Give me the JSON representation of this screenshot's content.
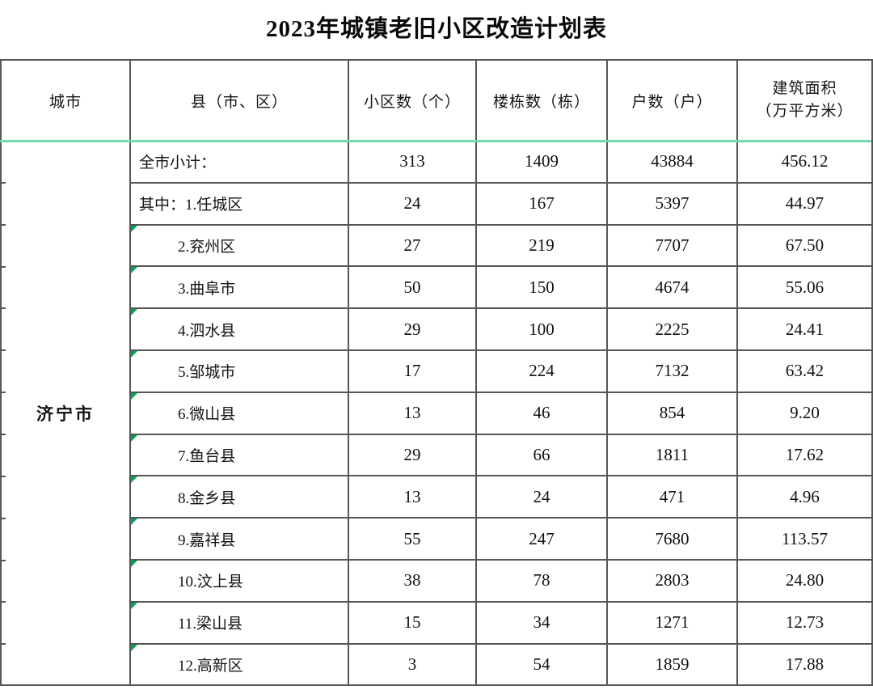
{
  "title": "2023年城镇老旧小区改造计划表",
  "colors": {
    "divider_green": "#74d9a8",
    "corner_triangle_green": "#00a651",
    "grid_border_gray": "#565656",
    "text": "#141414"
  },
  "table": {
    "headers": {
      "city": "城市",
      "county": "县（市、区）",
      "communities": "小区数（个）",
      "buildings": "楼栋数（栋）",
      "households": "户数（户）",
      "area_line1": "建筑面积",
      "area_line2": "（万平方米）"
    },
    "city": "济宁市",
    "rows": [
      {
        "county": "全市小计：",
        "communities": "313",
        "buildings": "1409",
        "households": "43884",
        "area": "456.12"
      },
      {
        "county": "其中：1.任城区",
        "communities": "24",
        "buildings": "167",
        "households": "5397",
        "area": "44.97"
      },
      {
        "county": "2.兖州区",
        "communities": "27",
        "buildings": "219",
        "households": "7707",
        "area": "67.50"
      },
      {
        "county": "3.曲阜市",
        "communities": "50",
        "buildings": "150",
        "households": "4674",
        "area": "55.06"
      },
      {
        "county": "4.泗水县",
        "communities": "29",
        "buildings": "100",
        "households": "2225",
        "area": "24.41"
      },
      {
        "county": "5.邹城市",
        "communities": "17",
        "buildings": "224",
        "households": "7132",
        "area": "63.42"
      },
      {
        "county": "6.微山县",
        "communities": "13",
        "buildings": "46",
        "households": "854",
        "area": "9.20"
      },
      {
        "county": "7.鱼台县",
        "communities": "29",
        "buildings": "66",
        "households": "1811",
        "area": "17.62"
      },
      {
        "county": "8.金乡县",
        "communities": "13",
        "buildings": "24",
        "households": "471",
        "area": "4.96"
      },
      {
        "county": "9.嘉祥县",
        "communities": "55",
        "buildings": "247",
        "households": "7680",
        "area": "113.57"
      },
      {
        "county": "10.汶上县",
        "communities": "38",
        "buildings": "78",
        "households": "2803",
        "area": "24.80"
      },
      {
        "county": "11.梁山县",
        "communities": "15",
        "buildings": "34",
        "households": "1271",
        "area": "12.73"
      },
      {
        "county": "12.高新区",
        "communities": "3",
        "buildings": "54",
        "households": "1859",
        "area": "17.88"
      }
    ]
  }
}
